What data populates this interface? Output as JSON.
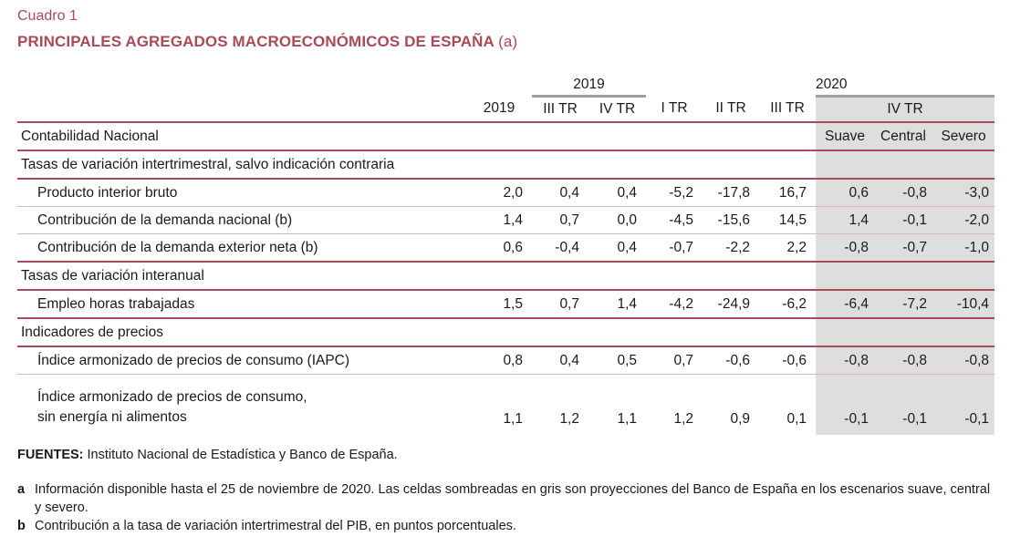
{
  "caption": "Cuadro 1",
  "title": "PRINCIPALES AGREGADOS MACROECONÓMICOS DE ESPAÑA",
  "title_suffix": "(a)",
  "header": {
    "year_2019": "2019",
    "year_2020": "2020",
    "cols": [
      "2019",
      "III TR",
      "IV TR",
      "I TR",
      "II TR",
      "III TR",
      "IV TR"
    ],
    "scenarios": [
      "Suave",
      "Central",
      "Severo"
    ]
  },
  "sections": [
    {
      "label": "Contabilidad Nacional",
      "scenario_row": true
    },
    {
      "label": "Tasas de variación intertrimestral, salvo indicación contraria",
      "rows": [
        {
          "label": "Producto interior bruto",
          "values": [
            "2,0",
            "0,4",
            "0,4",
            "-5,2",
            "-17,8",
            "16,7",
            "0,6",
            "-0,8",
            "-3,0"
          ]
        },
        {
          "label": "Contribución de la demanda nacional (b)",
          "values": [
            "1,4",
            "0,7",
            "0,0",
            "-4,5",
            "-15,6",
            "14,5",
            "1,4",
            "-0,1",
            "-2,0"
          ]
        },
        {
          "label": "Contribución de la demanda exterior neta (b)",
          "values": [
            "0,6",
            "-0,4",
            "0,4",
            "-0,7",
            "-2,2",
            "2,2",
            "-0,8",
            "-0,7",
            "-1,0"
          ]
        }
      ]
    },
    {
      "label": "Tasas de variación interanual",
      "rows": [
        {
          "label": "Empleo horas trabajadas",
          "values": [
            "1,5",
            "0,7",
            "1,4",
            "-4,2",
            "-24,9",
            "-6,2",
            "-6,4",
            "-7,2",
            "-10,4"
          ]
        }
      ]
    },
    {
      "label": "Indicadores de precios",
      "rows": [
        {
          "label": "Índice armonizado de precios de consumo (IAPC)",
          "values": [
            "0,8",
            "0,4",
            "0,5",
            "0,7",
            "-0,6",
            "-0,6",
            "-0,8",
            "-0,8",
            "-0,8"
          ]
        },
        {
          "label_line1": "Índice armonizado de precios de consumo,",
          "label_line2": "sin energía ni alimentos",
          "values": [
            "1,1",
            "1,2",
            "1,1",
            "1,2",
            "0,9",
            "0,1",
            "-0,1",
            "-0,1",
            "-0,1"
          ]
        }
      ]
    }
  ],
  "notes": {
    "sources_label": "FUENTES:",
    "sources_text": "Instituto Nacional de Estadística y Banco de España.",
    "fn_a_key": "a",
    "fn_a": "Información disponible hasta el 25 de noviembre de 2020. Las celdas sombreadas en gris son proyecciones del Banco de España en los escenarios suave, central y severo.",
    "fn_b_key": "b",
    "fn_b": "Contribución a la tasa de variación intertrimestral del PIB, en puntos porcentuales."
  },
  "colors": {
    "accent": "#a84a57",
    "shade": "#dedede"
  }
}
